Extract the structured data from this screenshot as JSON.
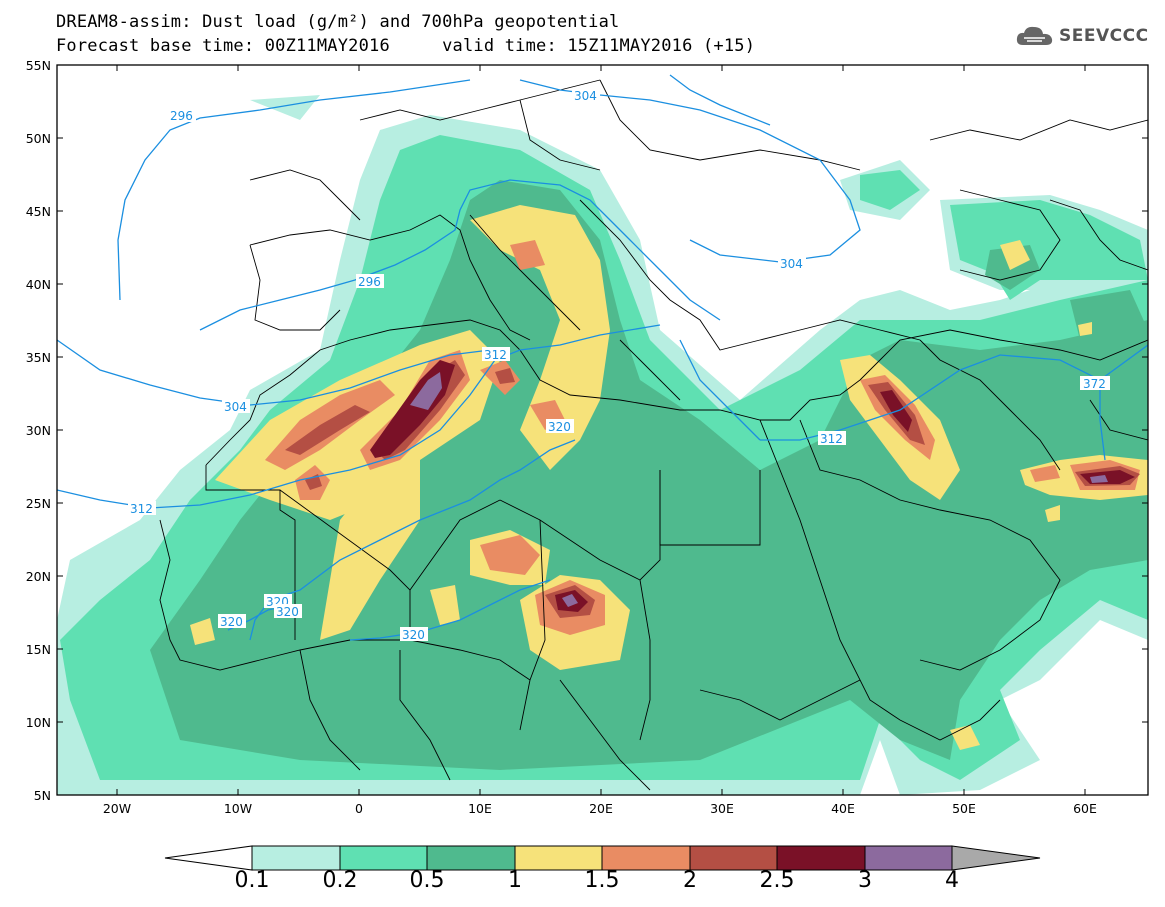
{
  "title_line1": "DREAM8-assim: Dust load (g/m²) and 700hPa geopotential",
  "title_line2_left": "Forecast base time: 00Z11MAY2016",
  "title_line2_right": "valid time: 15Z11MAY2016 (+15)",
  "logo_text": "SEEVCCC",
  "lon_labels": [
    "20W",
    "10W",
    "0",
    "10E",
    "20E",
    "30E",
    "40E",
    "50E",
    "60E"
  ],
  "lat_labels": [
    "55N",
    "50N",
    "45N",
    "40N",
    "35N",
    "30N",
    "25N",
    "20N",
    "15N",
    "10N",
    "5N"
  ],
  "contour_labels": [
    "296",
    "304",
    "296",
    "304",
    "312",
    "304",
    "312",
    "320",
    "320",
    "320",
    "320",
    "320",
    "312",
    "372"
  ],
  "colorbar": {
    "labels": [
      "0.1",
      "0.2",
      "0.5",
      "1",
      "1.5",
      "2",
      "2.5",
      "3",
      "4"
    ],
    "colors": [
      "#ffffff",
      "#b7eee1",
      "#5fe0b2",
      "#4fba8e",
      "#f6e27a",
      "#e98c63",
      "#b44f44",
      "#7a1127",
      "#8c6a9e",
      "#a9a9a9"
    ]
  },
  "colors": {
    "c01": "#b7eee1",
    "c02": "#5fe0b2",
    "c05": "#4fba8e",
    "c10": "#f6e27a",
    "c15": "#e98c63",
    "c20": "#b44f44",
    "c25": "#7a1127",
    "c30": "#8c6a9e",
    "contour": "#1b8fe0",
    "border": "#000000"
  }
}
